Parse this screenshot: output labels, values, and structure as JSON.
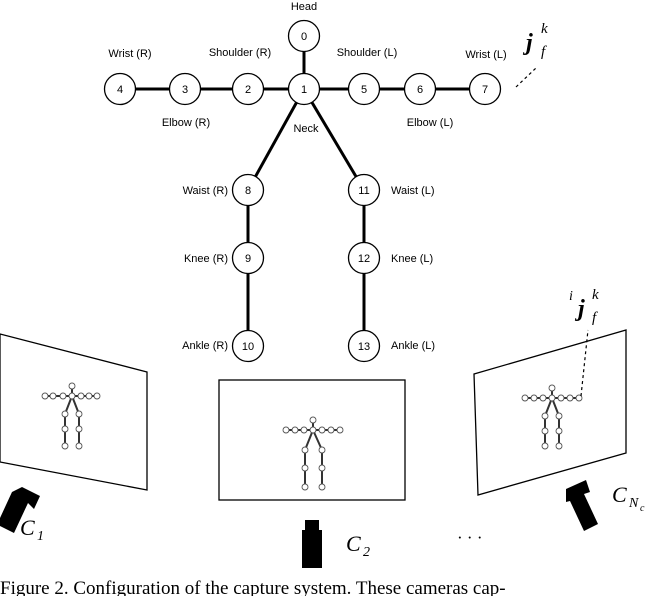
{
  "joint_labels": {
    "head": "Head",
    "wrist_r": "Wrist (R)",
    "shoulder_r": "Shoulder (R)",
    "shoulder_l": "Shoulder (L)",
    "wrist_l": "Wrist (L)",
    "elbow_r": "Elbow (R)",
    "neck": "Neck",
    "elbow_l": "Elbow (L)",
    "waist_r": "Waist (R)",
    "waist_l": "Waist (L)",
    "knee_r": "Knee (R)",
    "knee_l": "Knee (L)",
    "ankle_r": "Ankle (R)",
    "ankle_l": "Ankle (L)"
  },
  "joint_ids": [
    "0",
    "1",
    "2",
    "3",
    "4",
    "5",
    "6",
    "7",
    "8",
    "9",
    "10",
    "11",
    "12",
    "13"
  ],
  "math": {
    "j_main": "j",
    "j_sup": "k",
    "j_sub": "f",
    "ij_pre": "i",
    "ij_main": "j",
    "ij_sup": "k",
    "ij_sub": "f",
    "c1": "C",
    "c1_sub": "1",
    "c2": "C",
    "c2_sub": "2",
    "cn": "C",
    "cn_sub": "N",
    "cn_subsub": "c",
    "dots": "· · ·"
  },
  "caption": "Figure 2. Configuration of the capture system. These cameras cap-"
}
